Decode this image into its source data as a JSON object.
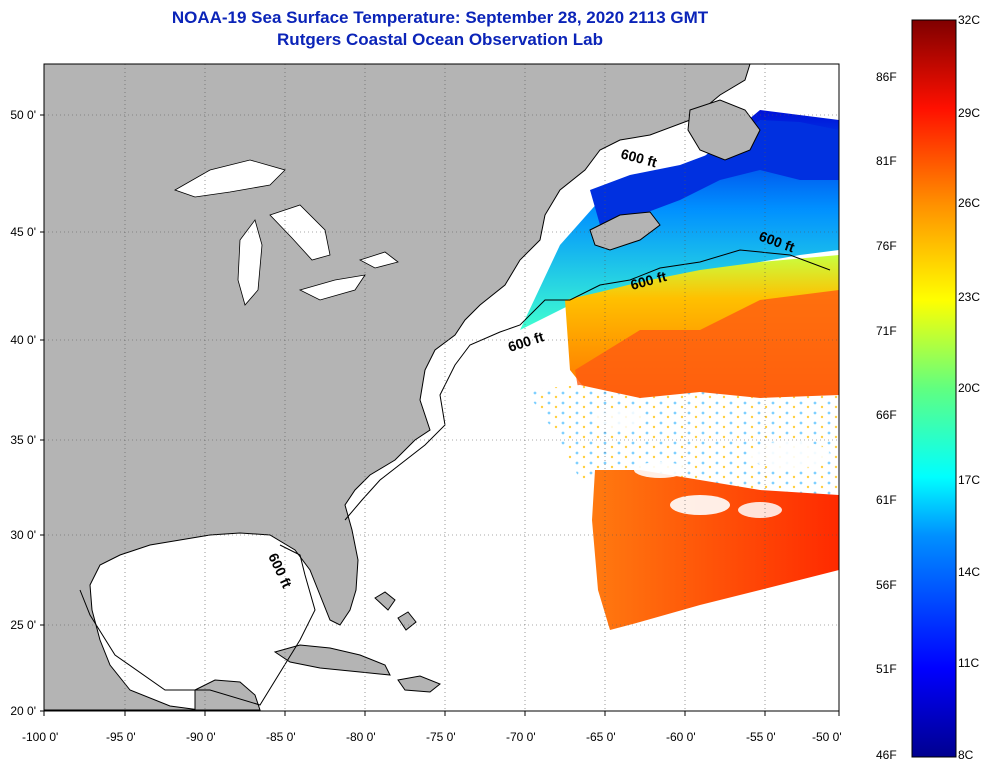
{
  "title_line1": "NOAA-19 Sea Surface Temperature:  September 28, 2020 2113 GMT",
  "title_line2": "Rutgers Coastal Ocean Observation Lab",
  "lat_labels": [
    "50 0'",
    "45 0'",
    "40 0'",
    "35 0'",
    "30 0'",
    "25 0'",
    "20 0'"
  ],
  "lon_labels": [
    "-100 0'",
    "-95 0'",
    "-90 0'",
    "-85 0'",
    "-80 0'",
    "-75 0'",
    "-70 0'",
    "-65 0'",
    "-60 0'",
    "-55 0'",
    "-50 0'"
  ],
  "contour_labels": [
    "600 ft",
    "600 ft",
    "600 ft",
    "600 ft",
    "600 ft"
  ],
  "colorbar_f": [
    "86F",
    "81F",
    "76F",
    "71F",
    "66F",
    "61F",
    "56F",
    "51F",
    "46F"
  ],
  "colorbar_c": [
    "32C",
    "29C",
    "26C",
    "23C",
    "20C",
    "17C",
    "14C",
    "11C",
    "8C"
  ],
  "colors": {
    "title": "#0b24b8",
    "land": "#b4b4b4",
    "cloud": "#ffffff"
  }
}
